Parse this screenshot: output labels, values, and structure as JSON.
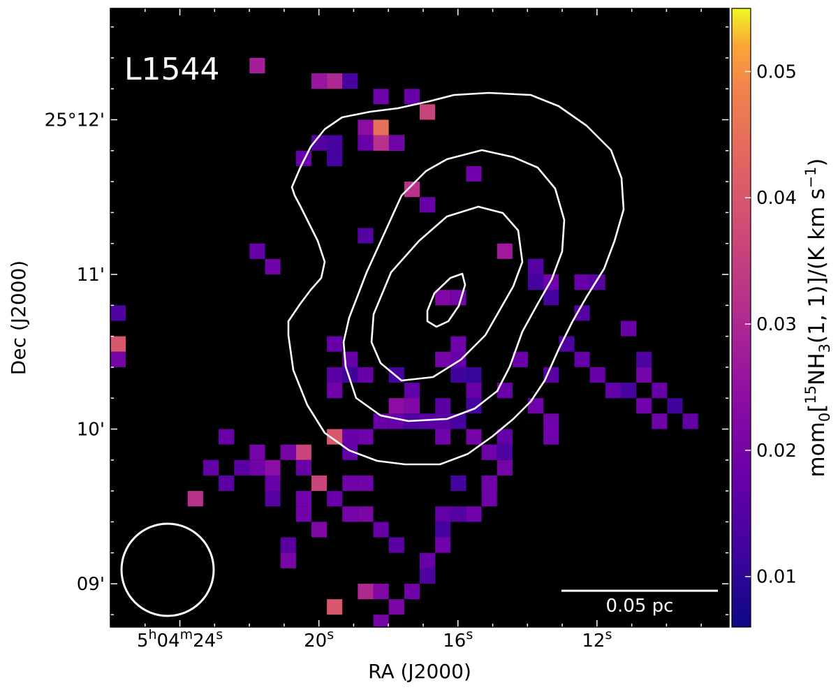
{
  "chart_data": {
    "type": "heatmap",
    "source_label": "L1544",
    "xlabel": "RA (J2000)",
    "ylabel": "Dec (J2000)",
    "colorbar": {
      "colormap": "plasma",
      "vmin": 0.006,
      "vmax": 0.055,
      "ticks": [
        0.01,
        0.02,
        0.03,
        0.04,
        0.05
      ],
      "tick_labels": [
        "0.01",
        "0.02",
        "0.03",
        "0.04",
        "0.05"
      ],
      "label_prefix": "mom",
      "label_sub1": "0",
      "label_mid1": "[",
      "label_sup1": "15",
      "label_mid2": "NH",
      "label_sub2": "3",
      "label_mid3": "(1, 1)]/(K km s",
      "label_sup2": "−1",
      "label_end": ")"
    },
    "x_ticks": [
      {
        "ra_sec": 24,
        "pre": "5",
        "sup_h": "h",
        "mid": "04",
        "sup_m": "m",
        "num": "24",
        "sup_s": "s"
      },
      {
        "ra_sec": 20,
        "pre": "",
        "sup_h": "",
        "mid": "",
        "sup_m": "",
        "num": "20",
        "sup_s": "s"
      },
      {
        "ra_sec": 16,
        "pre": "",
        "sup_h": "",
        "mid": "",
        "sup_m": "",
        "num": "16",
        "sup_s": "s"
      },
      {
        "ra_sec": 12,
        "pre": "",
        "sup_h": "",
        "mid": "",
        "sup_m": "",
        "num": "12",
        "sup_s": "s"
      }
    ],
    "y_ticks": [
      {
        "dec_arcmin": 12,
        "label": "25°12'"
      },
      {
        "dec_arcmin": 11,
        "label": "11'"
      },
      {
        "dec_arcmin": 10,
        "label": "10'"
      },
      {
        "dec_arcmin": 9,
        "label": "09'"
      }
    ],
    "ra_range_sec": [
      26.0,
      8.2
    ],
    "dec_range_arcmin": [
      8.72,
      12.72
    ],
    "pixel_size_arcmin": 0.1,
    "pixels": [
      [
        12.35,
        0.028
      ],
      [
        12.25,
        0.026
      ],
      [
        12.25,
        0.03
      ],
      [
        12.25,
        0.013
      ],
      [
        12.15,
        0.019
      ],
      [
        12.15,
        0.018
      ],
      [
        12.05,
        0.036
      ],
      [
        11.95,
        0.024
      ],
      [
        11.85,
        0.018
      ],
      [
        11.85,
        0.02
      ],
      [
        11.85,
        0.016
      ],
      [
        11.85,
        0.032
      ],
      [
        11.95,
        0.045
      ],
      [
        11.85,
        0.05
      ],
      [
        11.85,
        0.019
      ],
      [
        11.85,
        0.015
      ],
      [
        11.85,
        0.013
      ],
      [
        11.75,
        0.013
      ],
      [
        11.75,
        0.018
      ],
      [
        11.65,
        0.019
      ],
      [
        11.55,
        0.032
      ],
      [
        11.45,
        0.018
      ],
      [
        11.25,
        0.015
      ],
      [
        11.15,
        0.027
      ],
      [
        11.15,
        0.018
      ],
      [
        11.05,
        0.019
      ],
      [
        11.05,
        0.018
      ],
      [
        10.95,
        0.019
      ],
      [
        10.95,
        0.018
      ],
      [
        10.95,
        0.015
      ],
      [
        10.85,
        0.02
      ],
      [
        10.85,
        0.022
      ],
      [
        10.75,
        0.014
      ],
      [
        10.55,
        0.04
      ],
      [
        10.45,
        0.02
      ],
      [
        10.35,
        0.016
      ],
      [
        11.05,
        0.015
      ],
      [
        11.05,
        0.015
      ],
      [
        10.95,
        0.013
      ],
      [
        10.85,
        0.013
      ],
      [
        10.75,
        0.015
      ],
      [
        10.65,
        0.018
      ],
      [
        10.25,
        0.018
      ],
      [
        10.15,
        0.018
      ],
      [
        10.05,
        0.014
      ],
      [
        10.05,
        0.015
      ],
      [
        10.15,
        0.016
      ],
      [
        10.05,
        0.013
      ],
      [
        10.45,
        0.02
      ],
      [
        10.55,
        0.019
      ],
      [
        9.95,
        0.019
      ],
      [
        10.55,
        0.014
      ],
      [
        10.45,
        0.017
      ],
      [
        10.35,
        0.018
      ],
      [
        10.25,
        0.017
      ],
      [
        10.25,
        0.013
      ],
      [
        10.15,
        0.019
      ],
      [
        10.05,
        0.019
      ],
      [
        10.45,
        0.014
      ],
      [
        10.35,
        0.02
      ],
      [
        10.25,
        0.018
      ],
      [
        10.15,
        0.012
      ],
      [
        10.05,
        0.017
      ],
      [
        10.45,
        0.018
      ],
      [
        10.15,
        0.019
      ],
      [
        10.05,
        0.019
      ],
      [
        9.95,
        0.019
      ],
      [
        9.85,
        0.019
      ],
      [
        9.95,
        0.016
      ],
      [
        9.95,
        0.02
      ],
      [
        10.05,
        0.016
      ],
      [
        10.35,
        0.011
      ],
      [
        10.45,
        0.014
      ],
      [
        10.45,
        0.018
      ],
      [
        10.35,
        0.012
      ],
      [
        10.45,
        0.018
      ],
      [
        10.35,
        0.012
      ],
      [
        10.25,
        0.018
      ],
      [
        10.15,
        0.013
      ],
      [
        9.95,
        0.017
      ],
      [
        10.45,
        0.018
      ],
      [
        10.35,
        0.018
      ],
      [
        10.25,
        0.017
      ],
      [
        10.35,
        0.016
      ],
      [
        10.55,
        0.018
      ],
      [
        10.45,
        0.018
      ],
      [
        10.25,
        0.019
      ],
      [
        10.35,
        0.013
      ],
      [
        10.35,
        0.012
      ],
      [
        9.95,
        0.018
      ],
      [
        9.85,
        0.014
      ],
      [
        9.75,
        0.02
      ],
      [
        9.65,
        0.021
      ],
      [
        9.65,
        0.019
      ],
      [
        9.55,
        0.019
      ],
      [
        9.45,
        0.019
      ],
      [
        9.65,
        0.013
      ],
      [
        9.45,
        0.015
      ],
      [
        9.45,
        0.017
      ],
      [
        9.35,
        0.013
      ],
      [
        9.25,
        0.019
      ],
      [
        9.15,
        0.018
      ],
      [
        9.05,
        0.015
      ],
      [
        9.05,
        0.014
      ],
      [
        8.95,
        0.019
      ],
      [
        8.85,
        0.04
      ],
      [
        8.95,
        0.03
      ],
      [
        8.95,
        0.022
      ],
      [
        8.85,
        0.021
      ],
      [
        8.75,
        0.02
      ],
      [
        9.45,
        0.019
      ],
      [
        9.35,
        0.022
      ],
      [
        9.25,
        0.016
      ],
      [
        9.15,
        0.021
      ],
      [
        9.75,
        0.019
      ],
      [
        9.65,
        0.018
      ],
      [
        9.55,
        0.015
      ],
      [
        9.65,
        0.016
      ],
      [
        9.75,
        0.016
      ],
      [
        9.85,
        0.02
      ],
      [
        9.75,
        0.02
      ],
      [
        9.55,
        0.032
      ],
      [
        9.75,
        0.017
      ],
      [
        9.95,
        0.018
      ],
      [
        9.85,
        0.017
      ],
      [
        9.65,
        0.019
      ],
      [
        9.65,
        0.019
      ],
      [
        9.55,
        0.019
      ],
      [
        9.95,
        0.04
      ],
      [
        9.85,
        0.036
      ],
      [
        9.75,
        0.024
      ],
      [
        9.85,
        0.02
      ],
      [
        9.75,
        0.018
      ],
      [
        9.65,
        0.036
      ],
      [
        9.55,
        0.018
      ],
      [
        9.45,
        0.02
      ],
      [
        9.45,
        0.021
      ],
      [
        9.35,
        0.018
      ],
      [
        9.25,
        0.016
      ],
      [
        10.05,
        0.018
      ],
      [
        9.95,
        0.019
      ],
      [
        10.05,
        0.018
      ],
      [
        10.15,
        0.024
      ],
      [
        10.15,
        0.022
      ],
      [
        10.05,
        0.016
      ]
    ],
    "contours": [
      {
        "level": 1,
        "path": [
          [
            11.36,
            11.1
          ],
          [
            11.48,
            12.0
          ],
          [
            11.43,
            12.15
          ],
          [
            11.18,
            12.5
          ],
          [
            11.4,
            12.78
          ]
        ]
      },
      {
        "level": 2,
        "path": [
          [
            11.2,
            10.8
          ],
          [
            11.25,
            11.3
          ]
        ]
      },
      {
        "level": 3,
        "path": [
          [
            11.02,
            10.95
          ],
          [
            11.1,
            11.25
          ]
        ]
      },
      {
        "level": 4,
        "path": [
          [
            10.97,
            10.78
          ]
        ]
      }
    ],
    "scale_bar": {
      "label": "0.05 pc"
    },
    "beam": {
      "shape": "circle"
    }
  }
}
